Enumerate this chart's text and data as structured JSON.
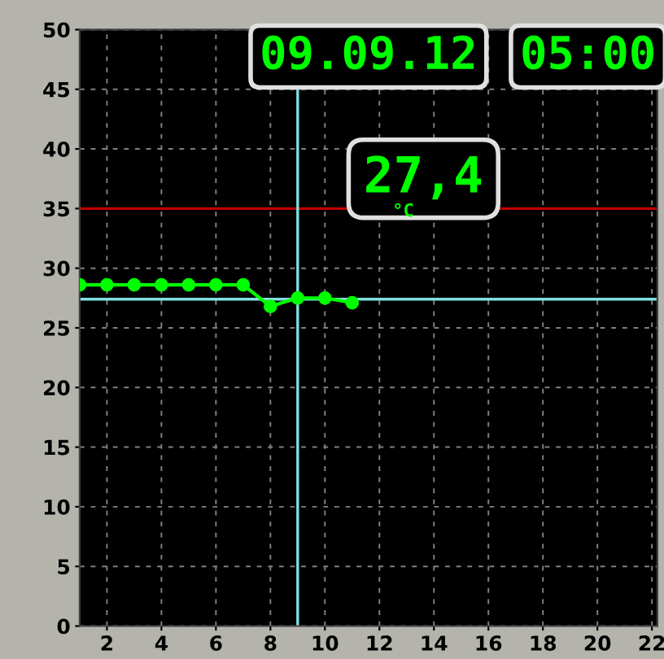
{
  "chart_data": {
    "type": "line",
    "x": [
      1,
      2,
      3,
      4,
      5,
      6,
      7,
      8,
      9,
      10,
      11
    ],
    "series": [
      {
        "color": "#00ff00",
        "values": [
          28.6,
          28.6,
          28.6,
          28.6,
          28.6,
          28.6,
          28.6,
          26.8,
          27.5,
          27.5,
          27.1
        ]
      }
    ],
    "marker": "circle",
    "xlim": [
      1,
      22.2
    ],
    "xticks": [
      2,
      4,
      6,
      8,
      10,
      12,
      14,
      16,
      18,
      20,
      22
    ],
    "ylim": [
      0,
      50
    ],
    "yticks": [
      0,
      5,
      10,
      15,
      20,
      25,
      30,
      35,
      40,
      45,
      50
    ],
    "grid": true,
    "ref_lines": [
      {
        "axis": "y",
        "value": 35,
        "color": "#c00000"
      },
      {
        "axis": "x",
        "value": 9,
        "color": "#80e0e0"
      },
      {
        "axis": "y",
        "value": 27.4,
        "color": "#80e0e0"
      }
    ],
    "annotations": [
      "09.09.12",
      "05:00",
      "27,4",
      "°C"
    ]
  }
}
